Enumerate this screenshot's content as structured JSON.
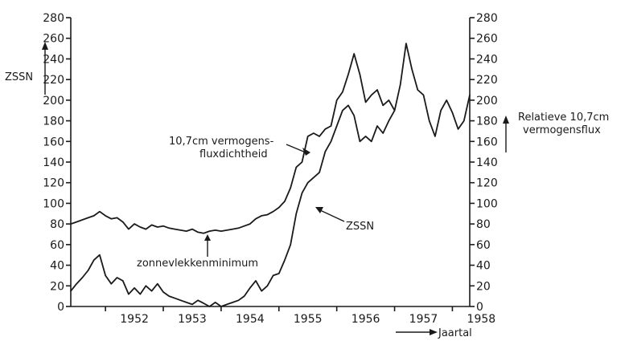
{
  "chart_data": {
    "type": "line",
    "ylabel_left": "ZSSN",
    "ylabel_right_line1": "Relatieve 10,7cm",
    "ylabel_right_line2": "vermogensflux",
    "xlabel": "Jaartal",
    "x_ticks": [
      "1952",
      "1953",
      "1954",
      "1955",
      "1956",
      "1957",
      "1958"
    ],
    "y_ticks": [
      0,
      20,
      40,
      60,
      80,
      100,
      120,
      140,
      160,
      180,
      200,
      220,
      240,
      260,
      280
    ],
    "xlim": [
      1951.4,
      1958.3
    ],
    "ylim": [
      0,
      280
    ],
    "annotations": {
      "flux_line1": "10,7cm vermogens-",
      "flux_line2": "fluxdichtheid",
      "zssn": "ZSSN",
      "minimum": "zonnevlekkenminimum"
    },
    "series": [
      {
        "id": "flux",
        "x": [
          1951.4,
          1951.5,
          1951.6,
          1951.7,
          1951.8,
          1951.9,
          1952.0,
          1952.1,
          1952.2,
          1952.3,
          1952.4,
          1952.5,
          1952.6,
          1952.7,
          1952.8,
          1952.9,
          1953.0,
          1953.1,
          1953.2,
          1953.3,
          1953.4,
          1953.5,
          1953.6,
          1953.7,
          1953.8,
          1953.9,
          1954.0,
          1954.1,
          1954.2,
          1954.3,
          1954.4,
          1954.5,
          1954.6,
          1954.7,
          1954.8,
          1954.9,
          1955.0,
          1955.1,
          1955.2,
          1955.3,
          1955.4,
          1955.5,
          1955.6,
          1955.7,
          1955.8,
          1955.9,
          1956.0,
          1956.1,
          1956.2,
          1956.3,
          1956.4,
          1956.5,
          1956.6,
          1956.7,
          1956.8,
          1956.9,
          1957.0,
          1957.1,
          1957.2,
          1957.3,
          1957.4,
          1957.5,
          1957.6,
          1957.7,
          1957.8,
          1957.9,
          1958.0,
          1958.1,
          1958.2,
          1958.3
        ],
        "values": [
          80,
          82,
          84,
          86,
          88,
          92,
          88,
          85,
          86,
          82,
          75,
          80,
          77,
          75,
          79,
          77,
          78,
          76,
          75,
          74,
          73,
          75,
          72,
          71,
          73,
          74,
          73,
          74,
          75,
          76,
          78,
          80,
          85,
          88,
          89,
          92,
          96,
          102,
          115,
          135,
          140,
          165,
          168,
          165,
          172,
          175,
          200,
          208,
          225,
          245,
          225,
          198,
          205,
          210,
          195,
          200,
          190,
          215,
          255,
          230,
          210,
          205,
          180,
          165,
          190,
          200,
          188,
          172,
          180,
          205
        ]
      },
      {
        "id": "zssn",
        "x": [
          1951.4,
          1951.5,
          1951.6,
          1951.7,
          1951.8,
          1951.9,
          1952.0,
          1952.1,
          1952.2,
          1952.3,
          1952.4,
          1952.5,
          1952.6,
          1952.7,
          1952.8,
          1952.9,
          1953.0,
          1953.1,
          1953.2,
          1953.3,
          1953.4,
          1953.5,
          1953.6,
          1953.7,
          1953.8,
          1953.9,
          1954.0,
          1954.1,
          1954.2,
          1954.3,
          1954.4,
          1954.5,
          1954.6,
          1954.7,
          1954.8,
          1954.9,
          1955.0,
          1955.1,
          1955.2,
          1955.3,
          1955.4,
          1955.5,
          1955.6,
          1955.7,
          1955.8,
          1955.9,
          1956.0,
          1956.1,
          1956.2,
          1956.3,
          1956.4,
          1956.5,
          1956.6,
          1956.7,
          1956.8,
          1956.9,
          1957.0
        ],
        "values": [
          15,
          22,
          28,
          35,
          45,
          50,
          30,
          22,
          28,
          25,
          12,
          18,
          12,
          20,
          15,
          22,
          14,
          10,
          8,
          6,
          4,
          2,
          6,
          3,
          0,
          4,
          0,
          2,
          4,
          6,
          10,
          18,
          25,
          15,
          20,
          30,
          32,
          45,
          60,
          90,
          110,
          120,
          125,
          130,
          150,
          160,
          175,
          190,
          195,
          185,
          160,
          165,
          160,
          175,
          168,
          180,
          190
        ]
      }
    ]
  }
}
